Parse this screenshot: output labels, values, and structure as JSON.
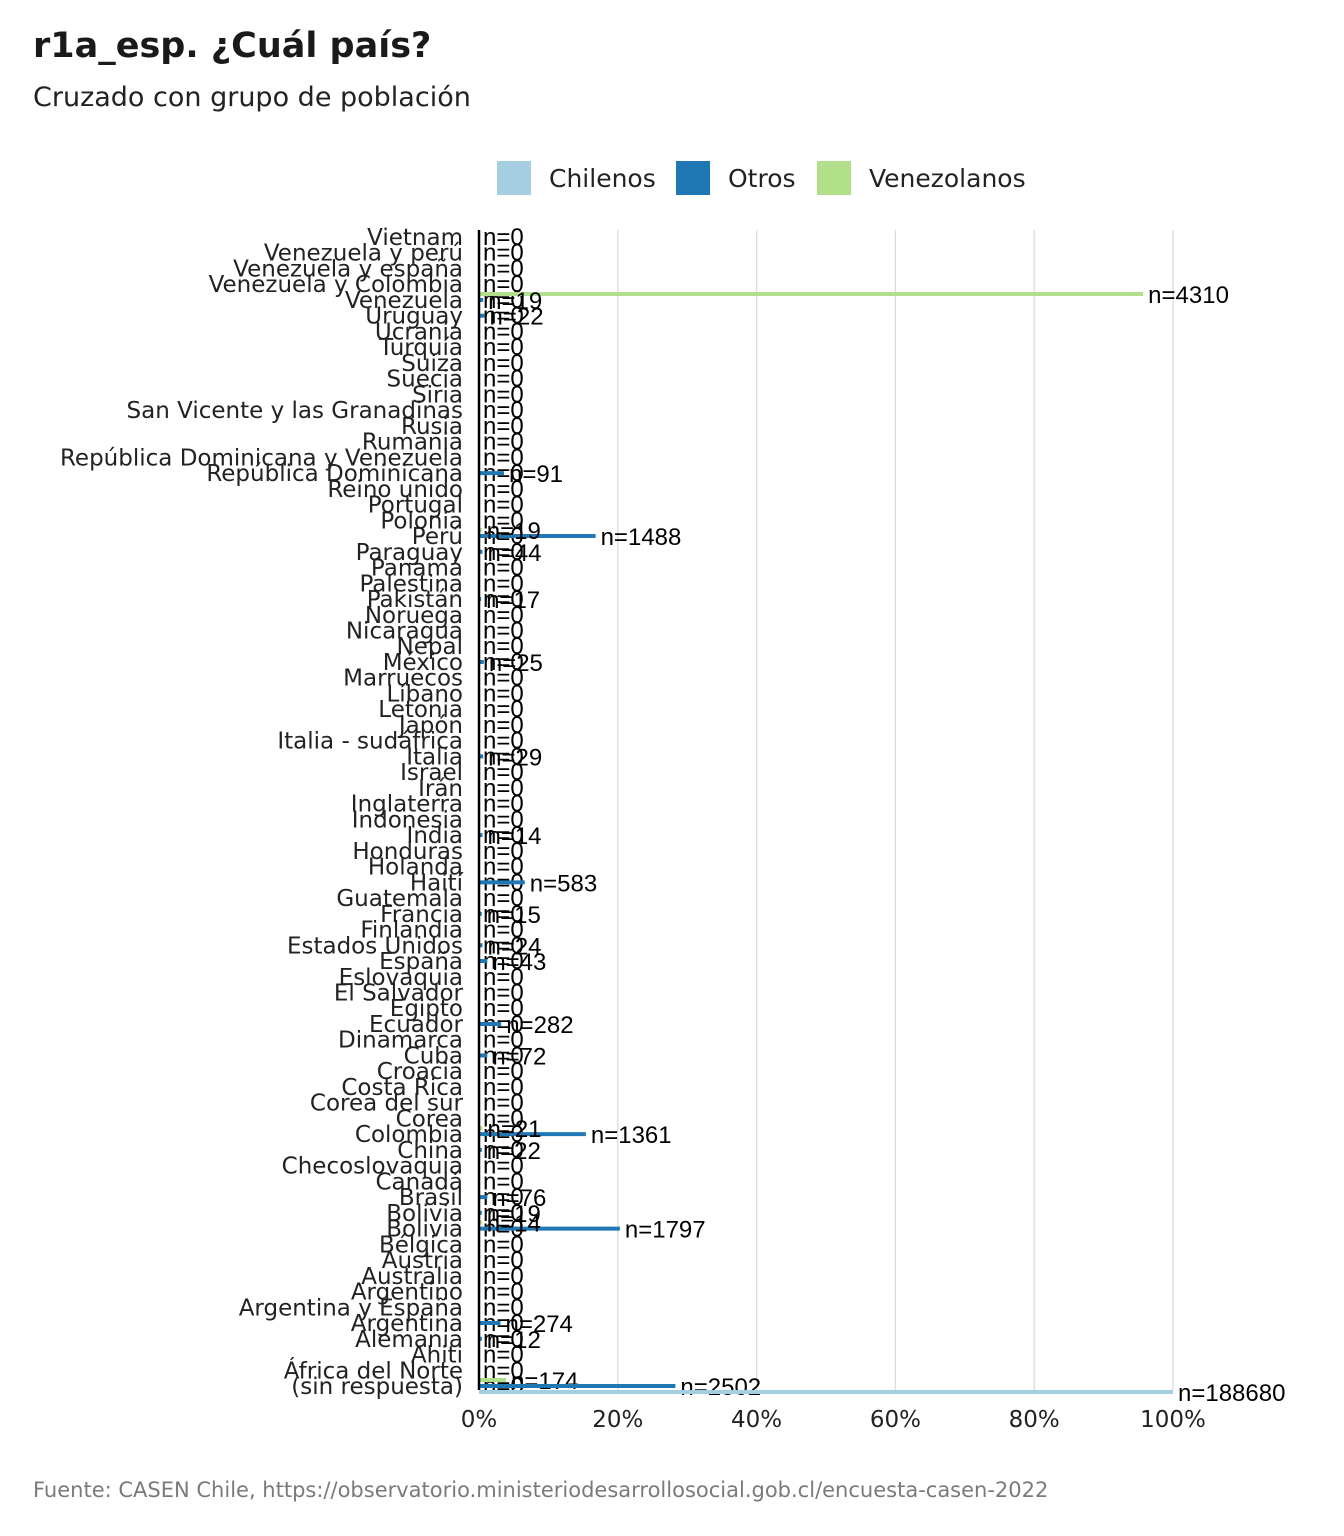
{
  "title": "r1a_esp. ¿Cuál país?",
  "subtitle": "Cruzado con grupo de población",
  "caption": "Fuente: CASEN Chile, https://observatorio.ministeriodesarrollosocial.gob.cl/encuesta-casen-2022",
  "chart_data": {
    "type": "bar",
    "orientation": "horizontal",
    "x_ticks": [
      "0%",
      "20%",
      "40%",
      "60%",
      "80%",
      "100%"
    ],
    "xlim": [
      0,
      1
    ],
    "grid": true,
    "legend_position": "top",
    "series": [
      {
        "name": "Chilenos",
        "color": "#a6cee3"
      },
      {
        "name": "Otros",
        "color": "#1f78b4"
      },
      {
        "name": "Venezolanos",
        "color": "#b2df8a"
      }
    ],
    "categories": [
      "Vietnam",
      "Venezuela y perú",
      "Venezuela y españa",
      "Venezuela y Colombia",
      "Venezuela",
      "Uruguay",
      "Ucrania",
      "Turquía",
      "Suiza",
      "Suecia",
      "Siria",
      "San Vicente y las Granadinas",
      "Rusia",
      "Rumania",
      "República Dominicana y Venezuela",
      "República Dominicana",
      "Reino unido",
      "Portugal",
      "Polonia",
      "Perú",
      "Paraguay",
      "Panamá",
      "Palestina",
      "Pakistán",
      "Noruega",
      "Nicaragua",
      "Nepal",
      "México",
      "Marruecos",
      "Líbano",
      "Letonia",
      "Japón",
      "Italia - sudáfrica",
      "Italia",
      "Israel",
      "Irán",
      "Inglaterra",
      "Indonesia",
      "India",
      "Honduras",
      "Holanda",
      "Haití",
      "Guatemala",
      "Francia",
      "Finlandia",
      "Estados Unidos",
      "España",
      "Eslovaquia",
      "El Salvador",
      "Egipto",
      "Ecuador",
      "Dinamarca",
      "Cuba",
      "Croacia",
      "Costa Rica",
      "Corea del sur",
      "Corea",
      "Colombia",
      "China",
      "Checoslovaquia",
      "Canadá",
      "Brasil",
      "Bolivia",
      "Bolivia",
      "Bélgica",
      "Austria",
      "Australia",
      "Argentino",
      "Argentina y España",
      "Argentina",
      "Alemania",
      "Ahiti",
      "África del Norte",
      "(sin respuesta)"
    ],
    "bars": [
      {
        "category": "Venezuela",
        "series": "Venezolanos",
        "value": 0.957,
        "label": "n=4310"
      },
      {
        "category": "Venezuela",
        "series": "Otros",
        "value": 0.006,
        "label": "n=19"
      },
      {
        "category": "Uruguay",
        "series": "Otros",
        "value": 0.008,
        "label": "n=22"
      },
      {
        "category": "República Dominicana",
        "series": "Otros",
        "value": 0.036,
        "label": "n=91"
      },
      {
        "category": "Perú",
        "series": "Otros",
        "value": 0.168,
        "label": "n=1488"
      },
      {
        "category": "Perú",
        "series": "Venezolanos",
        "value": 0.004,
        "label": "n=19"
      },
      {
        "category": "Paraguay",
        "series": "Otros",
        "value": 0.005,
        "label": "n=44"
      },
      {
        "category": "Pakistán",
        "series": "Otros",
        "value": 0.003,
        "label": "n=17"
      },
      {
        "category": "México",
        "series": "Otros",
        "value": 0.007,
        "label": "n=25"
      },
      {
        "category": "Italia",
        "series": "Otros",
        "value": 0.006,
        "label": "n=29"
      },
      {
        "category": "India",
        "series": "Otros",
        "value": 0.005,
        "label": "n=14"
      },
      {
        "category": "Haití",
        "series": "Otros",
        "value": 0.066,
        "label": "n=583"
      },
      {
        "category": "Francia",
        "series": "Otros",
        "value": 0.004,
        "label": "n=15"
      },
      {
        "category": "Estados Unidos",
        "series": "Otros",
        "value": 0.005,
        "label": "n=24"
      },
      {
        "category": "España",
        "series": "Otros",
        "value": 0.012,
        "label": "n=43"
      },
      {
        "category": "Ecuador",
        "series": "Otros",
        "value": 0.032,
        "label": "n=282"
      },
      {
        "category": "Cuba",
        "series": "Otros",
        "value": 0.012,
        "label": "n=72"
      },
      {
        "category": "Colombia",
        "series": "Otros",
        "value": 0.154,
        "label": "n=1361"
      },
      {
        "category": "Colombia",
        "series": "Venezolanos",
        "value": 0.005,
        "label": "n=21"
      },
      {
        "category": "China",
        "series": "Otros",
        "value": 0.004,
        "label": "n=22"
      },
      {
        "category": "Brasil",
        "series": "Otros",
        "value": 0.012,
        "label": "n=76"
      },
      {
        "category": "Bolivia",
        "series": "Otros",
        "value": 0.004,
        "label": "n=19"
      },
      {
        "category": "Bolivia",
        "series": "Otros",
        "value": 0.203,
        "label": "n=1797"
      },
      {
        "category": "Bolivia",
        "series": "Venezolanos",
        "value": 0.004,
        "label": "n=14"
      },
      {
        "category": "Argentina",
        "series": "Otros",
        "value": 0.031,
        "label": "n=274"
      },
      {
        "category": "Alemania",
        "series": "Otros",
        "value": 0.004,
        "label": "n=12"
      },
      {
        "category": "(sin respuesta)",
        "series": "Venezolanos",
        "value": 0.039,
        "label": "n=174"
      },
      {
        "category": "(sin respuesta)",
        "series": "Otros",
        "value": 0.283,
        "label": "n=2502"
      },
      {
        "category": "(sin respuesta)",
        "series": "Chilenos",
        "value": 1.0,
        "label": "n=188680"
      }
    ],
    "small_label": "n=0"
  }
}
